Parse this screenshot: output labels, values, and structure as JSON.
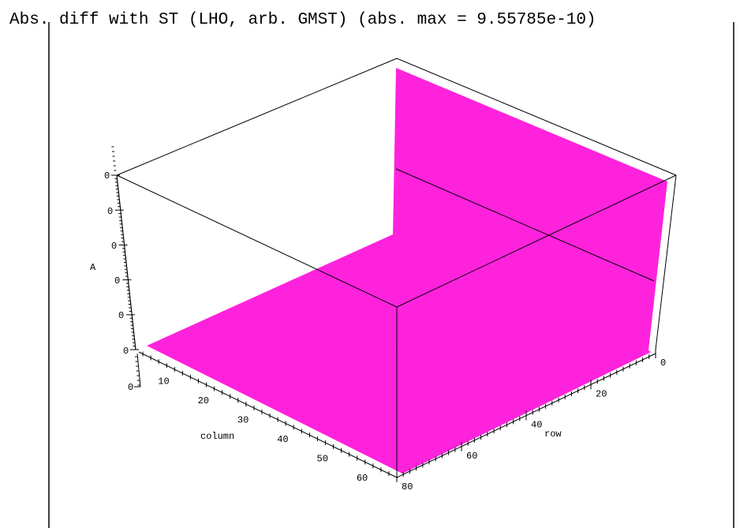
{
  "chart_data": {
    "type": "surface3d",
    "title": "Abs. diff with ST (LHO, arb. GMST) (abs. max = 9.55785e-10)",
    "xlabel": "column",
    "ylabel": "row",
    "zlabel": "A",
    "x_ticks": [
      "10",
      "20",
      "30",
      "40",
      "50",
      "60"
    ],
    "y_ticks": [
      "0",
      "20",
      "40",
      "60",
      "80"
    ],
    "z_ticks": [
      "0",
      "0",
      "0",
      "0",
      "0",
      "0",
      "0"
    ],
    "xlim": [
      0,
      65
    ],
    "ylim": [
      0,
      80
    ],
    "surface_color": "#ff22dd"
  }
}
